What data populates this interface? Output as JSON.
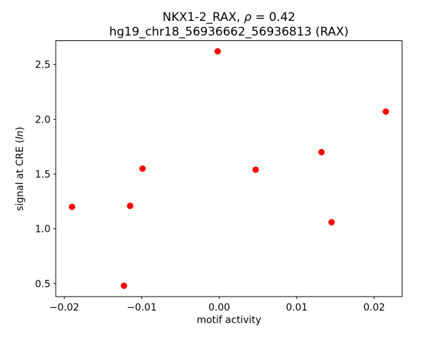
{
  "chart_data": {
    "type": "scatter",
    "title": "NKX1-2_RAX, ρ = 0.42",
    "subtitle": "hg19_chr18_56936662_56936813 (RAX)",
    "title_parts": {
      "prefix": "NKX1-2_RAX, ",
      "rho_symbol": "ρ",
      "suffix": " = 0.42"
    },
    "correlation_rho": 0.42,
    "xlabel": "motif activity",
    "ylabel": "signal at CRE (ln)",
    "ylabel_parts": {
      "prefix": "signal at CRE (",
      "italic": "ln",
      "suffix": ")"
    },
    "xlim": [
      -0.0211,
      0.0236
    ],
    "ylim": [
      0.381,
      2.717
    ],
    "xticks": [
      -0.02,
      -0.01,
      0,
      0.01,
      0.02
    ],
    "xtick_labels": [
      "−0.02",
      "−0.01",
      "0.00",
      "0.01",
      "0.02"
    ],
    "yticks": [
      0.5,
      1.0,
      1.5,
      2.0,
      2.5
    ],
    "ytick_labels": [
      "0.5",
      "1.0",
      "1.5",
      "2.0",
      "2.5"
    ],
    "grid": false,
    "legend": "none",
    "marker": {
      "shape": "circle",
      "color": "#ff0000",
      "radius_px": 4.6
    },
    "axis_color": "#000000",
    "background_color": "#ffffff",
    "points": [
      {
        "x": -0.019,
        "y": 1.2
      },
      {
        "x": -0.0123,
        "y": 0.48
      },
      {
        "x": -0.0115,
        "y": 1.21
      },
      {
        "x": -0.0099,
        "y": 1.55
      },
      {
        "x": -0.0002,
        "y": 2.62
      },
      {
        "x": 0.0047,
        "y": 1.54
      },
      {
        "x": 0.0132,
        "y": 1.7
      },
      {
        "x": 0.0145,
        "y": 1.06
      },
      {
        "x": 0.0215,
        "y": 2.07
      }
    ]
  }
}
